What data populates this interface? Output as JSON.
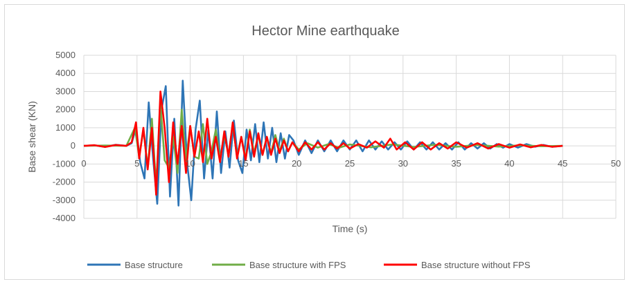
{
  "chart_data": {
    "type": "line",
    "title": "Hector Mine earthquake",
    "xlabel": "Time (s)",
    "ylabel": "Base shear (KN)",
    "xlim": [
      0,
      50
    ],
    "ylim": [
      -4000,
      5000
    ],
    "x_ticks": [
      "0",
      "5",
      "10",
      "15",
      "20",
      "25",
      "30",
      "35",
      "40",
      "45",
      "50"
    ],
    "y_ticks": [
      "-4000",
      "-3000",
      "-2000",
      "-1000",
      "0",
      "1000",
      "2000",
      "3000",
      "4000",
      "5000"
    ],
    "grid": "vertical and horizontal",
    "legend_position": "bottom",
    "series": [
      {
        "name": "Base structure",
        "color": "#2e75b6",
        "x": [
          0,
          1,
          2,
          3,
          4,
          4.5,
          4.9,
          5.3,
          5.7,
          6.1,
          6.5,
          6.9,
          7.3,
          7.7,
          8.1,
          8.5,
          8.9,
          9.3,
          9.7,
          10.1,
          10.5,
          10.9,
          11.3,
          11.7,
          12.1,
          12.5,
          12.9,
          13.3,
          13.7,
          14.1,
          14.5,
          14.9,
          15.3,
          15.7,
          16.1,
          16.5,
          16.9,
          17.3,
          17.7,
          18.1,
          18.5,
          18.9,
          19.3,
          19.7,
          20.2,
          20.8,
          21.4,
          22.0,
          22.6,
          23.2,
          23.8,
          24.4,
          25.0,
          25.6,
          26.2,
          26.8,
          27.4,
          28.0,
          28.6,
          29.2,
          29.8,
          30.4,
          31.0,
          31.6,
          32.2,
          32.8,
          33.4,
          34.0,
          34.6,
          35.2,
          35.8,
          36.4,
          37.0,
          37.6,
          38.2,
          38.8,
          39.4,
          40.0,
          40.8,
          41.6,
          42.4,
          43.2,
          44.0,
          45.0
        ],
        "values": [
          0,
          30,
          -50,
          60,
          0,
          150,
          1000,
          -900,
          -1800,
          2400,
          -600,
          -3200,
          2000,
          3300,
          -2800,
          1500,
          -3300,
          3600,
          -900,
          -3000,
          900,
          2500,
          -1800,
          900,
          -1800,
          1900,
          -1500,
          800,
          -1200,
          1400,
          -800,
          -1500,
          900,
          -800,
          1200,
          -900,
          1300,
          -700,
          1000,
          -900,
          700,
          -700,
          600,
          300,
          -500,
          300,
          -400,
          300,
          -300,
          300,
          -300,
          300,
          -200,
          300,
          -300,
          300,
          -200,
          250,
          -200,
          200,
          -200,
          250,
          -200,
          200,
          -200,
          200,
          -200,
          150,
          -200,
          200,
          -200,
          150,
          -150,
          150,
          -150,
          100,
          -100,
          100,
          -100,
          100,
          -50,
          50,
          -50,
          0
        ]
      },
      {
        "name": "Base structure with FPS",
        "color": "#70ad47",
        "x": [
          0,
          2,
          4,
          4.8,
          5.2,
          5.6,
          6.0,
          6.4,
          6.8,
          7.2,
          7.6,
          8.0,
          8.4,
          8.8,
          9.2,
          9.6,
          10.0,
          10.4,
          10.8,
          11.2,
          11.6,
          12.0,
          12.4,
          12.8,
          13.2,
          13.6,
          14.0,
          14.4,
          14.8,
          15.2,
          15.6,
          16.0,
          16.4,
          16.8,
          17.2,
          17.6,
          18.0,
          18.4,
          18.8,
          19.2,
          19.6,
          20.2,
          21.0,
          22.0,
          23.0,
          24.0,
          25.0,
          27.0,
          29.0,
          31.0,
          33.0,
          35.0,
          37.0,
          39.0,
          41.0,
          43.0,
          45.0
        ],
        "values": [
          0,
          20,
          0,
          1000,
          -600,
          900,
          -1200,
          1500,
          -2200,
          2300,
          -800,
          -1200,
          500,
          -1500,
          2000,
          -800,
          1100,
          -600,
          -700,
          1200,
          -1000,
          -300,
          900,
          -700,
          600,
          -500,
          1200,
          -600,
          500,
          -700,
          900,
          -400,
          600,
          -500,
          500,
          -400,
          600,
          -300,
          400,
          -300,
          200,
          -200,
          150,
          -100,
          100,
          -100,
          80,
          -80,
          80,
          -60,
          60,
          -50,
          50,
          -40,
          30,
          -20,
          0
        ]
      },
      {
        "name": "Base structure without FPS",
        "color": "#ff0000",
        "x": [
          0,
          1,
          2,
          3,
          4,
          4.5,
          4.9,
          5.2,
          5.6,
          6.0,
          6.4,
          6.8,
          7.2,
          7.6,
          8.0,
          8.4,
          8.8,
          9.2,
          9.6,
          10.0,
          10.4,
          10.8,
          11.2,
          11.6,
          12.0,
          12.4,
          12.8,
          13.2,
          13.6,
          14.0,
          14.4,
          14.8,
          15.2,
          15.6,
          16.0,
          16.4,
          16.8,
          17.2,
          17.6,
          18.0,
          18.4,
          18.8,
          19.2,
          19.6,
          20.2,
          20.8,
          21.4,
          22.0,
          22.6,
          23.2,
          23.8,
          24.4,
          25.0,
          25.8,
          26.6,
          27.4,
          28.2,
          28.8,
          29.4,
          30.2,
          31.0,
          31.8,
          32.6,
          33.4,
          34.2,
          35.0,
          36.0,
          37.0,
          38.0,
          39.0,
          40.0,
          41.0,
          42.0,
          43.0,
          44.0,
          45.0
        ],
        "values": [
          0,
          40,
          -60,
          50,
          0,
          200,
          1300,
          -700,
          1000,
          -1300,
          1000,
          -2700,
          3000,
          1000,
          -2000,
          1300,
          -1000,
          1100,
          -1500,
          1100,
          -600,
          800,
          -900,
          1500,
          -700,
          500,
          -900,
          800,
          -600,
          1300,
          -700,
          500,
          -800,
          800,
          -600,
          700,
          -500,
          500,
          -500,
          400,
          -400,
          300,
          -300,
          200,
          -300,
          200,
          -200,
          200,
          -200,
          150,
          -150,
          150,
          -150,
          100,
          -100,
          250,
          -100,
          400,
          -200,
          200,
          -200,
          200,
          -200,
          150,
          -150,
          200,
          -100,
          150,
          -150,
          100,
          -100,
          80,
          -80,
          50,
          -50,
          0
        ]
      }
    ]
  }
}
